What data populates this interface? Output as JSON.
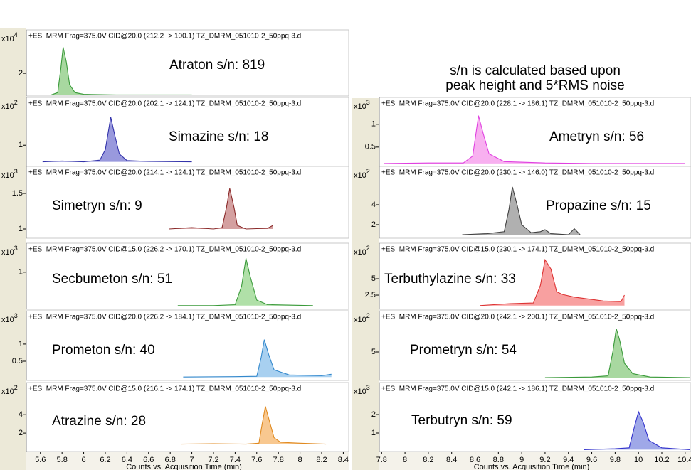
{
  "notes": [
    "s/n is calculated based upon",
    "peak height and 5*RMS noise"
  ],
  "chart_data": [
    {
      "type": "line",
      "title": "+ESI MRM Frag=375.0V CID@20.0 (212.2 -> 100.1) TZ_DMRM_051010-2_50ppq-3.d",
      "annotation": "Atraton  s/n: 819",
      "y_base": "x10",
      "y_exponent": 4,
      "xlim": [
        5.47,
        8.45
      ],
      "ylim": [
        0,
        4.7
      ],
      "yticks": [
        2
      ],
      "color": "#3a9a3a",
      "fill": "#a8d8a0",
      "x": [
        5.7,
        5.76,
        5.79,
        5.81,
        5.84,
        5.87,
        5.92,
        6.0,
        6.3,
        7.0
      ],
      "values": [
        0.1,
        0.3,
        2.5,
        4.3,
        3.0,
        1.0,
        0.3,
        0.15,
        0.1,
        0.1
      ]
    },
    {
      "type": "line",
      "title": "+ESI MRM Frag=375.0V CID@20.0 (202.1 -> 124.1) TZ_DMRM_051010-2_50ppq-3.d",
      "annotation": "Simazine  s/n: 18",
      "y_base": "x10",
      "y_exponent": 2,
      "xlim": [
        5.47,
        8.45
      ],
      "ylim": [
        0.5,
        1.8
      ],
      "yticks": [
        1
      ],
      "color": "#3333aa",
      "fill": "#9999dd",
      "x": [
        5.62,
        5.8,
        6.0,
        6.15,
        6.2,
        6.25,
        6.29,
        6.33,
        6.4,
        6.6,
        7.0
      ],
      "values": [
        0.62,
        0.64,
        0.62,
        0.66,
        0.9,
        1.64,
        1.2,
        0.8,
        0.65,
        0.63,
        0.62
      ]
    },
    {
      "type": "line",
      "title": "+ESI MRM Frag=375.0V CID@20.0 (214.1 -> 124.1) TZ_DMRM_051010-2_50ppq-3.d",
      "annotation": "Simetryn  s/n: 9",
      "y_base": "x10",
      "y_exponent": 3,
      "xlim": [
        5.47,
        8.45
      ],
      "ylim": [
        0.87,
        1.7
      ],
      "yticks": [
        1.5,
        1
      ],
      "color": "#8a2a2a",
      "fill": "#d4a0a0",
      "x": [
        6.79,
        7.0,
        7.2,
        7.28,
        7.32,
        7.35,
        7.39,
        7.42,
        7.5,
        7.7,
        7.75
      ],
      "values": [
        1.0,
        1.02,
        1.0,
        1.02,
        1.3,
        1.57,
        1.3,
        1.05,
        1.0,
        1.01,
        1.05
      ]
    },
    {
      "type": "line",
      "title": "+ESI MRM Frag=375.0V CID@15.0 (226.2 -> 170.1) TZ_DMRM_051010-2_50ppq-3.d",
      "annotation": "Secbumeton  s/n: 51",
      "y_base": "x10",
      "y_exponent": 3,
      "xlim": [
        5.47,
        8.45
      ],
      "ylim": [
        0.2,
        1.35
      ],
      "yticks": [
        1
      ],
      "color": "#3a9a3a",
      "fill": "#b0e0a8",
      "x": [
        6.87,
        7.2,
        7.4,
        7.46,
        7.5,
        7.54,
        7.6,
        7.7,
        8.12
      ],
      "values": [
        0.28,
        0.28,
        0.3,
        0.7,
        1.3,
        0.9,
        0.4,
        0.3,
        0.28
      ]
    },
    {
      "type": "line",
      "title": "+ESI MRM Frag=375.0V CID@20.0 (226.2 -> 184.1) TZ_DMRM_051010-2_50ppq-3.d",
      "annotation": "Prometon  s/n: 40",
      "y_base": "x10",
      "y_exponent": 3,
      "xlim": [
        5.47,
        8.45
      ],
      "ylim": [
        -0.06,
        1.6
      ],
      "yticks": [
        1,
        0.5
      ],
      "color": "#3388cc",
      "fill": "#a8d0f0",
      "x": [
        6.92,
        7.4,
        7.6,
        7.64,
        7.67,
        7.71,
        7.76,
        7.9,
        8.2,
        8.29
      ],
      "values": [
        0.04,
        0.05,
        0.06,
        0.6,
        1.13,
        0.7,
        0.25,
        0.1,
        0.08,
        0.12
      ]
    },
    {
      "type": "line",
      "title": "+ESI MRM Frag=375.0V CID@15.0 (216.1 -> 174.1) TZ_DMRM_051010-2_50ppq-3.d",
      "annotation": "Atrazine  s/n: 28",
      "y_base": "x10",
      "y_exponent": 2,
      "xlim": [
        5.47,
        8.45
      ],
      "ylim": [
        0,
        6.1
      ],
      "yticks": [
        4,
        2
      ],
      "color": "#e08a20",
      "fill": "#f8c890",
      "x": [
        6.9,
        7.2,
        7.5,
        7.62,
        7.65,
        7.68,
        7.72,
        7.76,
        7.82,
        8.0,
        8.24
      ],
      "values": [
        0.8,
        0.85,
        0.8,
        0.9,
        3,
        4.9,
        3.2,
        1.5,
        1.0,
        0.9,
        0.8
      ],
      "xticks": [
        5.6,
        5.8,
        6,
        6.2,
        6.4,
        6.6,
        6.8,
        7,
        7.2,
        7.4,
        7.6,
        7.8,
        8,
        8.2,
        8.4
      ],
      "xlabel": "Counts vs. Acquisition Time (min)"
    },
    {
      "type": "line",
      "title": "+ESI MRM Frag=375.0V CID@20.0 (228.1 -> 186.1) TZ_DMRM_051010-2_50ppq-3.d",
      "annotation": "Ametryn  s/n: 56",
      "y_base": "x10",
      "y_exponent": 3,
      "xlim": [
        7.78,
        10.45
      ],
      "ylim": [
        0.06,
        1.31
      ],
      "yticks": [
        1,
        0.5
      ],
      "color": "#e040e0",
      "fill": "#f8b0f0",
      "x": [
        7.82,
        8.2,
        8.5,
        8.58,
        8.63,
        8.67,
        8.72,
        8.85,
        9.2,
        9.6,
        10.4
      ],
      "values": [
        0.14,
        0.15,
        0.15,
        0.3,
        1.19,
        0.8,
        0.35,
        0.18,
        0.15,
        0.14,
        0.14
      ]
    },
    {
      "type": "line",
      "title": "+ESI MRM Frag=375.0V CID@20.0 (230.1 -> 146.0) TZ_DMRM_051010-2_50ppq-3.d",
      "annotation": "Propazine  s/n: 15",
      "y_base": "x10",
      "y_exponent": 2,
      "xlim": [
        7.78,
        10.45
      ],
      "ylim": [
        0.64,
        6.57
      ],
      "yticks": [
        4,
        2
      ],
      "color": "#404040",
      "fill": "#b0b0b0",
      "x": [
        8.49,
        8.7,
        8.85,
        8.89,
        8.92,
        8.96,
        9.0,
        9.08,
        9.16,
        9.2,
        9.25,
        9.4,
        9.45,
        9.5
      ],
      "values": [
        1.0,
        1.1,
        1.3,
        3.5,
        5.79,
        4,
        2,
        1.2,
        1.3,
        1.5,
        1.1,
        1.0,
        1.6,
        1.0
      ]
    },
    {
      "type": "line",
      "title": "+ESI MRM Frag=375.0V CID@15.0 (230.1 -> 174.1) TZ_DMRM_051010-2_50ppq-3.d",
      "annotation": "Terbuthylazine  s/n: 33",
      "y_base": "x10",
      "y_exponent": 2,
      "xlim": [
        7.78,
        10.45
      ],
      "ylim": [
        0.33,
        8.48
      ],
      "yticks": [
        5,
        2.5
      ],
      "color": "#dd3333",
      "fill": "#f8a0a0",
      "x": [
        8.64,
        8.9,
        9.1,
        9.16,
        9.2,
        9.25,
        9.3,
        9.35,
        9.45,
        9.7,
        9.85,
        9.88
      ],
      "values": [
        0.9,
        1.2,
        1.3,
        4,
        7.9,
        6.5,
        3,
        2.6,
        2.2,
        1.6,
        1.5,
        2.5
      ]
    },
    {
      "type": "line",
      "title": "+ESI MRM Frag=375.0V CID@20.0 (242.1 -> 200.1) TZ_DMRM_051010-2_50ppq-3.d",
      "annotation": "Prometryn  s/n: 54",
      "y_base": "x10",
      "y_exponent": 2,
      "xlim": [
        7.78,
        10.45
      ],
      "ylim": [
        0,
        10
      ],
      "yticks": [
        5
      ],
      "color": "#3a9a3a",
      "fill": "#a8d8a0",
      "x": [
        9.2,
        9.6,
        9.74,
        9.78,
        9.81,
        9.84,
        9.88,
        9.95,
        10.1,
        10.44
      ],
      "values": [
        0.5,
        0.6,
        0.8,
        5,
        9.1,
        7,
        3,
        1.2,
        0.6,
        0.5
      ]
    },
    {
      "type": "line",
      "title": "+ESI MRM Frag=375.0V CID@15.0 (242.1 -> 186.1) TZ_DMRM_051010-2_50ppq-3.d",
      "annotation": "Terbutryn  s/n: 59",
      "y_base": "x10",
      "y_exponent": 3,
      "xlim": [
        7.78,
        10.45
      ],
      "ylim": [
        0,
        3.04
      ],
      "yticks": [
        2,
        1
      ],
      "color": "#3333cc",
      "fill": "#9fa8e8",
      "x": [
        9.53,
        9.8,
        9.92,
        9.96,
        10.0,
        10.04,
        10.09,
        10.2,
        10.44
      ],
      "values": [
        0.1,
        0.15,
        0.2,
        1.2,
        2.15,
        1.6,
        0.6,
        0.2,
        0.1
      ],
      "xticks": [
        7.8,
        8,
        8.2,
        8.4,
        8.6,
        8.8,
        9,
        9.2,
        9.4,
        9.6,
        9.8,
        10,
        10.2,
        10.4
      ],
      "xlabel": "Counts vs. Acquisition Time (min)"
    }
  ]
}
